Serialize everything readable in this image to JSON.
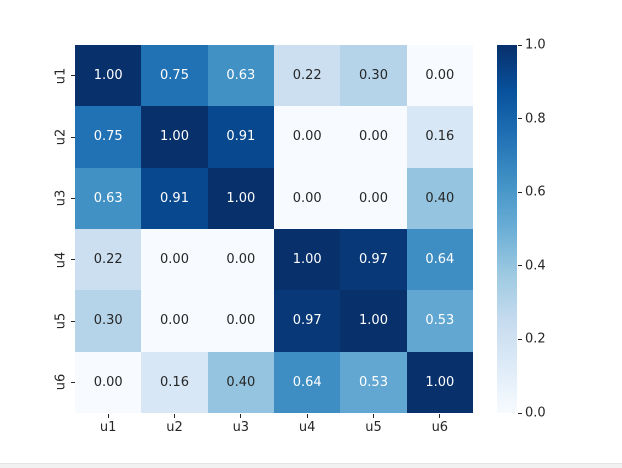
{
  "chart_data": {
    "type": "heatmap",
    "title": "",
    "xlabel": "",
    "ylabel": "",
    "x_ticklabels": [
      "u1",
      "u2",
      "u3",
      "u4",
      "u5",
      "u6"
    ],
    "y_ticklabels": [
      "u1",
      "u2",
      "u3",
      "u4",
      "u5",
      "u6"
    ],
    "matrix": [
      [
        1.0,
        0.75,
        0.63,
        0.22,
        0.3,
        0.0
      ],
      [
        0.75,
        1.0,
        0.91,
        0.0,
        0.0,
        0.16
      ],
      [
        0.63,
        0.91,
        1.0,
        0.0,
        0.0,
        0.4
      ],
      [
        0.22,
        0.0,
        0.0,
        1.0,
        0.97,
        0.64
      ],
      [
        0.3,
        0.0,
        0.0,
        0.97,
        1.0,
        0.53
      ],
      [
        0.0,
        0.16,
        0.4,
        0.64,
        0.53,
        1.0
      ]
    ],
    "vmin": 0.0,
    "vmax": 1.0,
    "annotation_decimals": 2,
    "grid": false,
    "legend_position": "colorbar-right",
    "colorbar": {
      "tick_values": [
        1.0,
        0.8,
        0.6,
        0.4,
        0.2,
        0.0
      ],
      "tick_labels": [
        "1.0",
        "0.8",
        "0.6",
        "0.4",
        "0.2",
        "0.0"
      ]
    },
    "colormap": {
      "name": "Blues",
      "anchors": [
        "#f7fbff",
        "#deebf7",
        "#c6dbef",
        "#9ecae1",
        "#6baed6",
        "#4292c6",
        "#2171b5",
        "#08519c",
        "#08306b"
      ]
    },
    "colors": {
      "annotation_on_dark": "#ffffff",
      "annotation_on_light": "#262626",
      "tick_color": "#262626",
      "figure_background": "#ffffff"
    }
  }
}
